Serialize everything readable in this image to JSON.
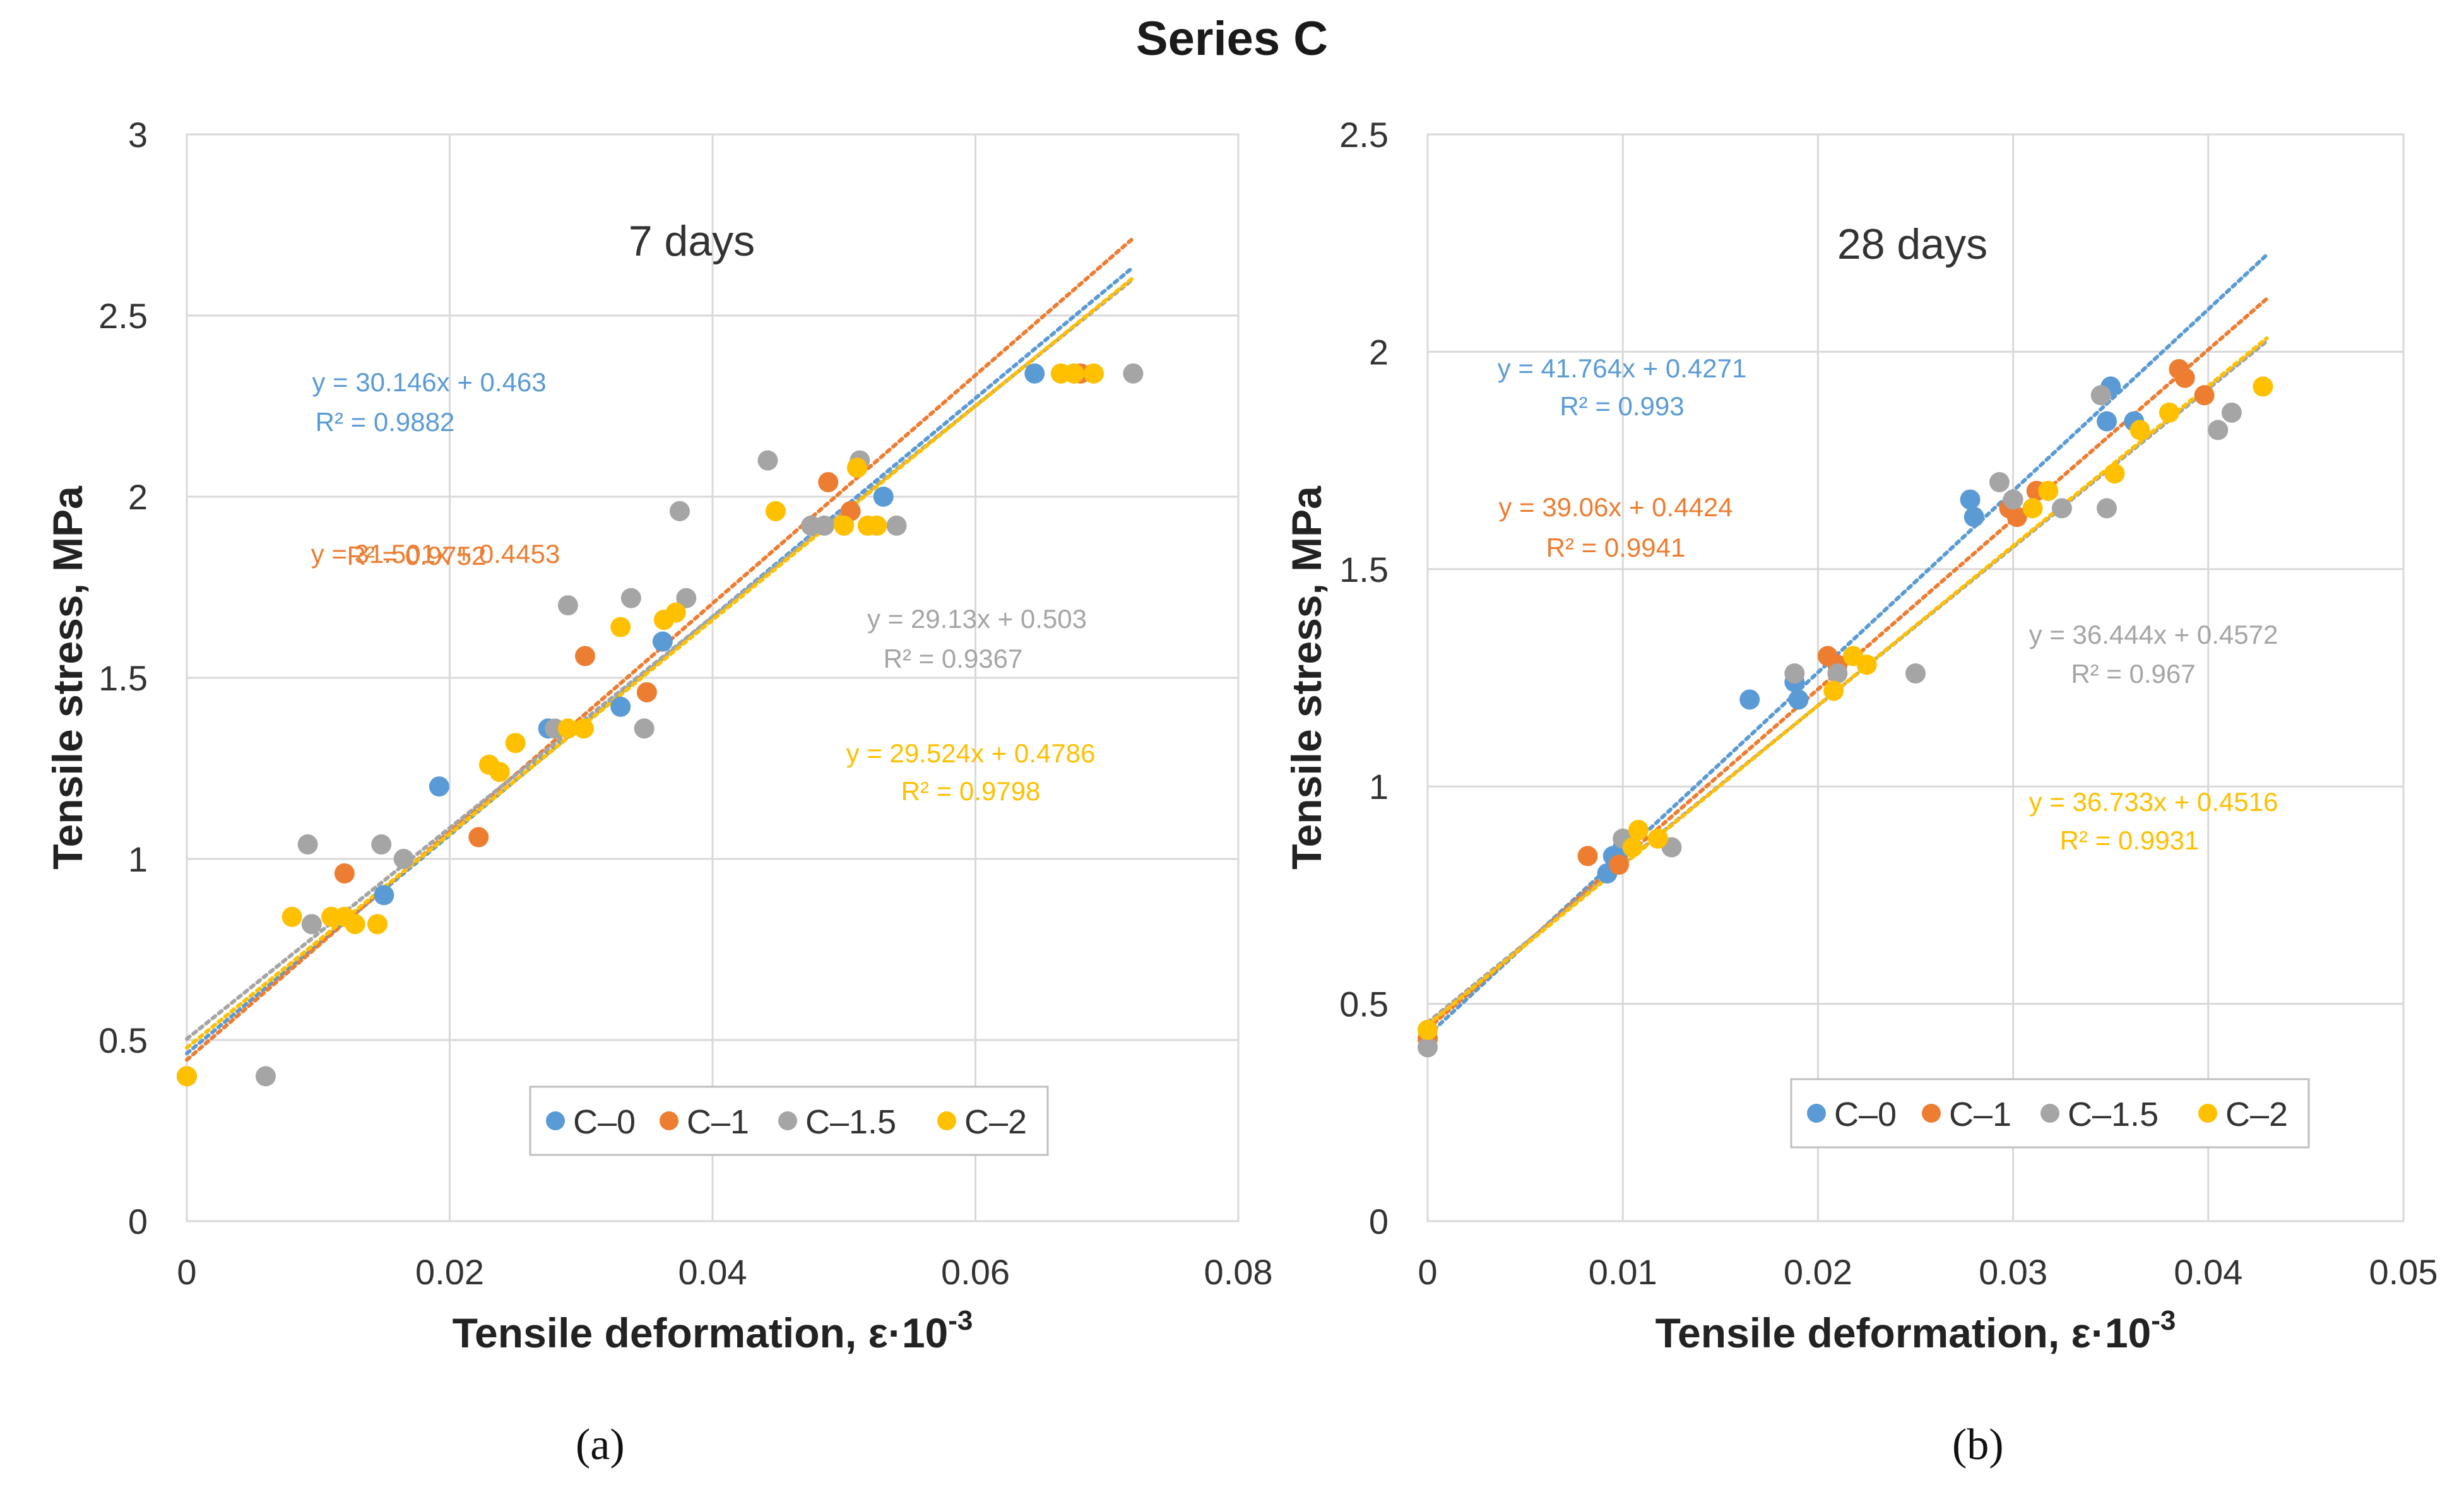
{
  "figure": {
    "title": "Series C",
    "panel_labels": [
      "(a)",
      "(b)"
    ],
    "series_colors": {
      "C-0": "#5b9bd5",
      "C-1": "#ed7d31",
      "C-1.5": "#a5a5a5",
      "C-2": "#ffc000"
    }
  },
  "chart_data": [
    {
      "type": "scatter",
      "title": "7 days",
      "xlabel": "Tensile deformation, ε·10",
      "xlabel_superscript": "-3",
      "ylabel": "Tensile stress, MPa",
      "xlim": [
        0,
        0.08
      ],
      "ylim": [
        0,
        3
      ],
      "xticks": [
        0,
        0.02,
        0.04,
        0.06,
        0.08
      ],
      "xtick_labels": [
        "0",
        "0.02",
        "0.04",
        "0.06",
        "0.08"
      ],
      "yticks": [
        0,
        0.5,
        1,
        1.5,
        2,
        2.5,
        3
      ],
      "ytick_labels": [
        "0",
        "0.5",
        "1",
        "1.5",
        "2",
        "2.5",
        "3"
      ],
      "grid": true,
      "legend_position": "bottom-right",
      "series": [
        {
          "name": "C-0",
          "color": "#5b9bd5",
          "points": [
            [
              0,
              0.4
            ],
            [
              0.015,
              0.9
            ],
            [
              0.0192,
              1.2
            ],
            [
              0.0275,
              1.36
            ],
            [
              0.033,
              1.42
            ],
            [
              0.0362,
              1.6
            ],
            [
              0.053,
              2.0
            ],
            [
              0.0645,
              2.34
            ]
          ],
          "trendline": {
            "slope": 30.146,
            "intercept": 0.463,
            "x_end": 0.072
          },
          "equation": "y = 30.146x + 0.463",
          "r2": "R² = 0.9882"
        },
        {
          "name": "C-1",
          "color": "#ed7d31",
          "points": [
            [
              0,
              0.4
            ],
            [
              0.012,
              0.96
            ],
            [
              0.0222,
              1.06
            ],
            [
              0.0303,
              1.56
            ],
            [
              0.035,
              1.46
            ],
            [
              0.0488,
              2.04
            ],
            [
              0.0505,
              1.96
            ],
            [
              0.051,
              2.08
            ],
            [
              0.068,
              2.34
            ]
          ],
          "trendline": {
            "slope": 31.501,
            "intercept": 0.4453,
            "x_end": 0.072
          },
          "equation": "y = 31.501x + 0.4453",
          "r2": "R² = 0.9752"
        },
        {
          "name": "C-1.5",
          "color": "#a5a5a5",
          "points": [
            [
              0.006,
              0.4
            ],
            [
              0.0092,
              1.04
            ],
            [
              0.0095,
              0.82
            ],
            [
              0.0148,
              1.04
            ],
            [
              0.0165,
              1.0
            ],
            [
              0.028,
              1.36
            ],
            [
              0.029,
              1.7
            ],
            [
              0.0338,
              1.72
            ],
            [
              0.0348,
              1.36
            ],
            [
              0.0375,
              1.96
            ],
            [
              0.038,
              1.72
            ],
            [
              0.0442,
              2.1
            ],
            [
              0.0475,
              1.92
            ],
            [
              0.0485,
              1.92
            ],
            [
              0.0512,
              2.1
            ],
            [
              0.054,
              1.92
            ],
            [
              0.072,
              2.34
            ]
          ],
          "trendline": {
            "slope": 29.13,
            "intercept": 0.503,
            "x_end": 0.072
          },
          "equation": "y = 29.13x + 0.503",
          "r2": "R² = 0.9367"
        },
        {
          "name": "C-2",
          "color": "#ffc000",
          "points": [
            [
              0,
              0.4
            ],
            [
              0.008,
              0.84
            ],
            [
              0.011,
              0.84
            ],
            [
              0.012,
              0.84
            ],
            [
              0.0128,
              0.82
            ],
            [
              0.0145,
              0.82
            ],
            [
              0.023,
              1.26
            ],
            [
              0.0238,
              1.24
            ],
            [
              0.025,
              1.32
            ],
            [
              0.029,
              1.36
            ],
            [
              0.0302,
              1.36
            ],
            [
              0.033,
              1.64
            ],
            [
              0.0363,
              1.66
            ],
            [
              0.0372,
              1.68
            ],
            [
              0.0448,
              1.96
            ],
            [
              0.05,
              1.92
            ],
            [
              0.051,
              2.08
            ],
            [
              0.0518,
              1.92
            ],
            [
              0.0525,
              1.92
            ],
            [
              0.0665,
              2.34
            ],
            [
              0.0675,
              2.34
            ],
            [
              0.069,
              2.34
            ]
          ],
          "trendline": {
            "slope": 29.524,
            "intercept": 0.4786,
            "x_end": 0.072
          },
          "equation": "y = 29.524x + 0.4786",
          "r2": "R² = 0.9798"
        }
      ]
    },
    {
      "type": "scatter",
      "title": "28 days",
      "xlabel": "Tensile deformation, ε·10",
      "xlabel_superscript": "-3",
      "ylabel": "Tensile stress, MPa",
      "xlim": [
        0,
        0.05
      ],
      "ylim": [
        0,
        2.5
      ],
      "xticks": [
        0,
        0.01,
        0.02,
        0.03,
        0.04,
        0.05
      ],
      "xtick_labels": [
        "0",
        "0.01",
        "0.02",
        "0.03",
        "0.04",
        "0.05"
      ],
      "yticks": [
        0,
        0.5,
        1,
        1.5,
        2,
        2.5
      ],
      "ytick_labels": [
        "0",
        "0.5",
        "1",
        "1.5",
        "2",
        "2.5"
      ],
      "grid": true,
      "legend_position": "bottom-right",
      "series": [
        {
          "name": "C-0",
          "color": "#5b9bd5",
          "points": [
            [
              0,
              0.42
            ],
            [
              0.0092,
              0.8
            ],
            [
              0.0095,
              0.84
            ],
            [
              0.01,
              0.86
            ],
            [
              0.0165,
              1.2
            ],
            [
              0.0188,
              1.24
            ],
            [
              0.019,
              1.2
            ],
            [
              0.0278,
              1.66
            ],
            [
              0.028,
              1.62
            ],
            [
              0.0348,
              1.84
            ],
            [
              0.035,
              1.92
            ],
            [
              0.0362,
              1.84
            ]
          ],
          "trendline": {
            "slope": 41.764,
            "intercept": 0.4271,
            "x_end": 0.043
          },
          "equation": "y = 41.764x + 0.4271",
          "r2": "R² = 0.993"
        },
        {
          "name": "C-1",
          "color": "#ed7d31",
          "points": [
            [
              0,
              0.42
            ],
            [
              0.0082,
              0.84
            ],
            [
              0.0098,
              0.82
            ],
            [
              0.0205,
              1.3
            ],
            [
              0.021,
              1.28
            ],
            [
              0.0298,
              1.64
            ],
            [
              0.0302,
              1.62
            ],
            [
              0.0312,
              1.68
            ],
            [
              0.0385,
              1.96
            ],
            [
              0.0388,
              1.94
            ],
            [
              0.0398,
              1.9
            ]
          ],
          "trendline": {
            "slope": 39.06,
            "intercept": 0.4424,
            "x_end": 0.043
          },
          "equation": "y = 39.06x + 0.4424",
          "r2": "R² = 0.9941"
        },
        {
          "name": "C-1.5",
          "color": "#a5a5a5",
          "points": [
            [
              0,
              0.4
            ],
            [
              0.01,
              0.88
            ],
            [
              0.0125,
              0.86
            ],
            [
              0.0188,
              1.26
            ],
            [
              0.021,
              1.26
            ],
            [
              0.025,
              1.26
            ],
            [
              0.0293,
              1.7
            ],
            [
              0.03,
              1.66
            ],
            [
              0.0325,
              1.64
            ],
            [
              0.0345,
              1.9
            ],
            [
              0.0348,
              1.64
            ],
            [
              0.0405,
              1.82
            ],
            [
              0.0412,
              1.86
            ]
          ],
          "trendline": {
            "slope": 36.444,
            "intercept": 0.4572,
            "x_end": 0.043
          },
          "equation": "y = 36.444x + 0.4572",
          "r2": "R² = 0.967"
        },
        {
          "name": "C-2",
          "color": "#ffc000",
          "points": [
            [
              0,
              0.44
            ],
            [
              0.0105,
              0.86
            ],
            [
              0.0108,
              0.9
            ],
            [
              0.0118,
              0.88
            ],
            [
              0.0208,
              1.22
            ],
            [
              0.0218,
              1.3
            ],
            [
              0.0225,
              1.28
            ],
            [
              0.031,
              1.64
            ],
            [
              0.0318,
              1.68
            ],
            [
              0.0352,
              1.72
            ],
            [
              0.0365,
              1.82
            ],
            [
              0.038,
              1.86
            ],
            [
              0.0428,
              1.92
            ]
          ],
          "trendline": {
            "slope": 36.733,
            "intercept": 0.4516,
            "x_end": 0.043
          },
          "equation": "y = 36.733x + 0.4516",
          "r2": "R² = 0.9931"
        }
      ]
    }
  ]
}
